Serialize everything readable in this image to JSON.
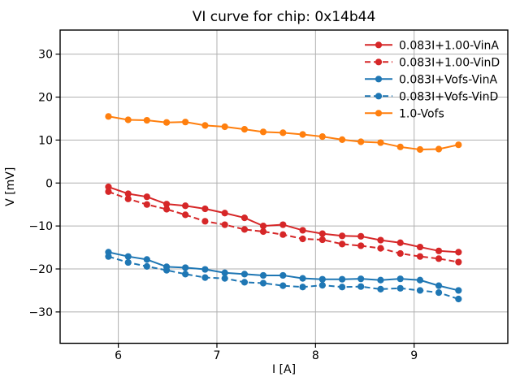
{
  "window": {
    "background": "#ffffff"
  },
  "chart_data": {
    "type": "line",
    "title": "VI curve for chip: 0x14b44",
    "xlabel": "I [A]",
    "ylabel": "V [mV]",
    "xlim": [
      5.41,
      9.95
    ],
    "ylim": [
      -37.3,
      35.6
    ],
    "xticks": [
      6,
      7,
      8,
      9
    ],
    "yticks": [
      -30,
      -20,
      -10,
      0,
      10,
      20,
      30
    ],
    "grid": true,
    "grid_color": "#b0b0b0",
    "spine_color": "#000000",
    "text_color": "#000000",
    "legend_position": "upper right",
    "legend_frame": false,
    "marker": "circle",
    "x": [
      5.9,
      6.1,
      6.29,
      6.49,
      6.68,
      6.88,
      7.08,
      7.28,
      7.47,
      7.67,
      7.87,
      8.07,
      8.27,
      8.46,
      8.66,
      8.86,
      9.06,
      9.25,
      9.45
    ],
    "series": [
      {
        "name": "0.083I+1.00-VinA",
        "color": "#d62728",
        "style": "solid",
        "values": [
          -0.9,
          -2.5,
          -3.2,
          -4.9,
          -5.3,
          -6.0,
          -7.0,
          -8.1,
          -10.0,
          -9.7,
          -11.0,
          -11.8,
          -12.3,
          -12.4,
          -13.3,
          -13.9,
          -14.9,
          -15.8,
          -16.1
        ]
      },
      {
        "name": "0.083I+1.00-VinD",
        "color": "#d62728",
        "style": "dashed",
        "values": [
          -2.0,
          -3.7,
          -5.0,
          -6.1,
          -7.4,
          -8.9,
          -9.7,
          -10.8,
          -11.3,
          -12.0,
          -13.0,
          -13.2,
          -14.2,
          -14.6,
          -15.2,
          -16.4,
          -17.1,
          -17.6,
          -18.4
        ]
      },
      {
        "name": "0.083I+Vofs-VinA",
        "color": "#1f77b4",
        "style": "solid",
        "values": [
          -16.1,
          -17.1,
          -17.8,
          -19.5,
          -19.7,
          -20.1,
          -20.9,
          -21.2,
          -21.5,
          -21.5,
          -22.2,
          -22.4,
          -22.4,
          -22.3,
          -22.6,
          -22.3,
          -22.6,
          -23.9,
          -25.0
        ]
      },
      {
        "name": "0.083I+Vofs-VinD",
        "color": "#1f77b4",
        "style": "dashed",
        "values": [
          -17.1,
          -18.5,
          -19.4,
          -20.3,
          -21.2,
          -22.0,
          -22.2,
          -23.1,
          -23.3,
          -23.9,
          -24.2,
          -23.8,
          -24.2,
          -24.1,
          -24.7,
          -24.5,
          -25.0,
          -25.5,
          -27.0
        ]
      },
      {
        "name": "1.0-Vofs",
        "color": "#ff7f0e",
        "style": "solid",
        "values": [
          15.5,
          14.7,
          14.6,
          14.1,
          14.2,
          13.4,
          13.1,
          12.5,
          11.9,
          11.7,
          11.3,
          10.8,
          10.1,
          9.6,
          9.4,
          8.4,
          7.8,
          7.9,
          8.9
        ]
      }
    ]
  }
}
